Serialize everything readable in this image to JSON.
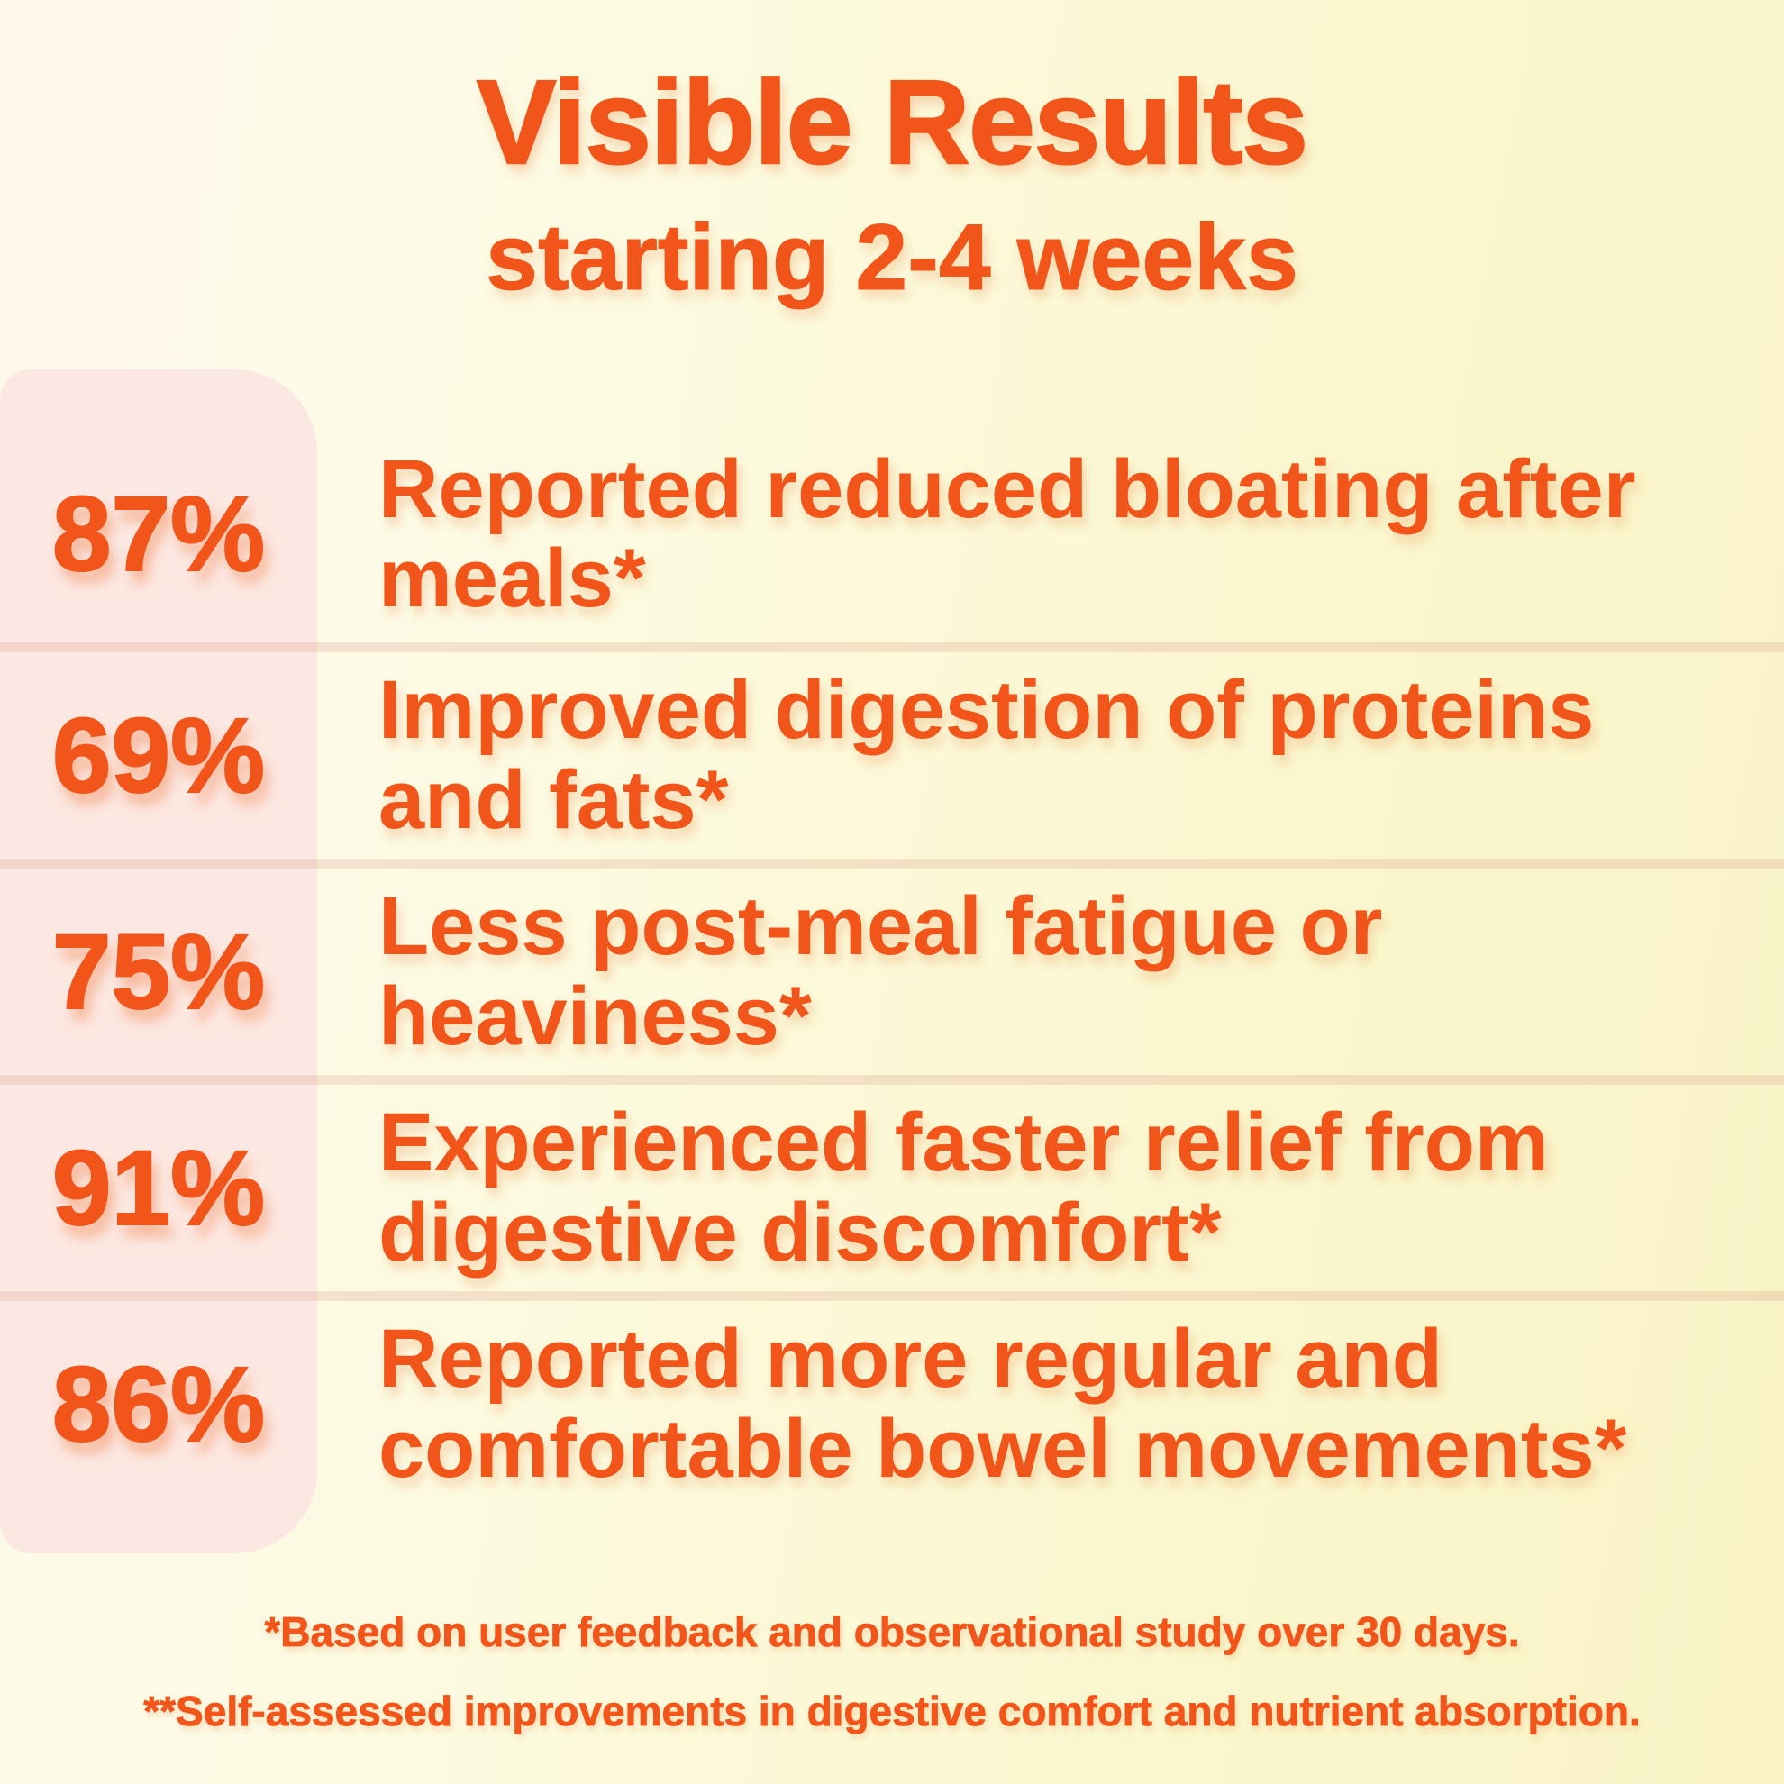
{
  "accent_color": "#F2551A",
  "panel_color": "#FCE8E2",
  "background_colors": [
    "#FEF7EA",
    "#F9F3C5"
  ],
  "header": {
    "title": "Visible Results",
    "subtitle": "starting 2-4 weeks"
  },
  "rows": [
    {
      "percent": "87%",
      "lines": [
        "Reported reduced bloating after",
        "meals*"
      ]
    },
    {
      "percent": "69%",
      "lines": [
        "Improved digestion of proteins",
        "and fats*"
      ]
    },
    {
      "percent": "75%",
      "lines": [
        "Less post-meal fatigue or",
        "heaviness*"
      ]
    },
    {
      "percent": "91%",
      "lines": [
        "Experienced faster relief from",
        "digestive discomfort*"
      ]
    },
    {
      "percent": "86%",
      "lines": [
        "Reported more regular and",
        "comfortable bowel movements*"
      ]
    }
  ],
  "footnotes": [
    "*Based on user feedback and observational study over 30 days.",
    "**Self-assessed improvements in digestive comfort and nutrient absorption."
  ],
  "chart_data": {
    "type": "table",
    "title": "Visible Results",
    "subtitle": "starting 2-4 weeks",
    "categories": [
      "Reported reduced bloating after meals*",
      "Improved digestion of proteins and fats*",
      "Less post-meal fatigue or heaviness*",
      "Experienced faster relief from digestive discomfort*",
      "Reported more regular and comfortable bowel movements*"
    ],
    "values": [
      87,
      69,
      75,
      91,
      86
    ],
    "unit": "%"
  }
}
